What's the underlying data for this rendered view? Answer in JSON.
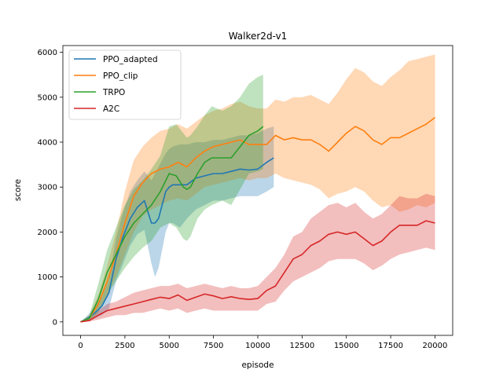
{
  "chart_data": {
    "type": "line",
    "title": "Walker2d-v1",
    "xlabel": "episode",
    "ylabel": "score",
    "xlim": [
      -1000,
      21000
    ],
    "ylim": [
      -300,
      6150
    ],
    "xticks": [
      0,
      2500,
      5000,
      7500,
      10000,
      12500,
      15000,
      17500,
      20000
    ],
    "yticks": [
      0,
      1000,
      2000,
      3000,
      4000,
      5000,
      6000
    ],
    "legend_position": "top-left",
    "grid": false,
    "series": [
      {
        "name": "PPO_adapted",
        "color": "#1f77b4",
        "x": [
          0,
          400,
          800,
          1200,
          1600,
          2000,
          2400,
          2800,
          3200,
          3600,
          4000,
          4200,
          4400,
          4800,
          5000,
          5200,
          5600,
          6000,
          6500,
          7000,
          7500,
          8000,
          8500,
          9000,
          9500,
          10000,
          10500,
          10900
        ],
        "y": [
          0,
          80,
          200,
          350,
          650,
          1400,
          1900,
          2300,
          2550,
          2700,
          2200,
          2200,
          2300,
          2900,
          3000,
          3050,
          3050,
          3050,
          3200,
          3250,
          3300,
          3300,
          3350,
          3400,
          3380,
          3400,
          3550,
          3650
        ],
        "lower": [
          0,
          20,
          80,
          150,
          300,
          900,
          1300,
          1700,
          1950,
          2050,
          1300,
          1000,
          1200,
          2000,
          2200,
          2200,
          2100,
          2300,
          2500,
          2600,
          2700,
          2700,
          2750,
          2800,
          2800,
          2800,
          2900,
          3000
        ],
        "upper": [
          0,
          150,
          350,
          550,
          950,
          1850,
          2450,
          2900,
          3150,
          3350,
          3150,
          3300,
          3450,
          3750,
          3850,
          3900,
          3950,
          3950,
          4000,
          4000,
          4050,
          4050,
          4100,
          4150,
          4150,
          4200,
          4300,
          4350
        ]
      },
      {
        "name": "PPO_clip",
        "color": "#ff7f0e",
        "x": [
          0,
          500,
          1000,
          1500,
          2000,
          2500,
          3000,
          3500,
          4000,
          4500,
          5000,
          5500,
          6000,
          6500,
          7000,
          7500,
          8000,
          8500,
          9000,
          9500,
          10000,
          10500,
          11000,
          11500,
          12000,
          12500,
          13000,
          13500,
          14000,
          14500,
          15000,
          15500,
          16000,
          16500,
          17000,
          17500,
          18000,
          18500,
          19000,
          19500,
          20000
        ],
        "y": [
          0,
          80,
          400,
          900,
          1500,
          2200,
          2800,
          3100,
          3300,
          3400,
          3450,
          3550,
          3450,
          3650,
          3800,
          3900,
          3950,
          4000,
          4050,
          3950,
          3950,
          3950,
          4150,
          4050,
          4100,
          4050,
          4050,
          3950,
          3800,
          4000,
          4200,
          4350,
          4250,
          4050,
          3950,
          4100,
          4100,
          4200,
          4300,
          4400,
          4550
        ],
        "lower": [
          0,
          40,
          250,
          600,
          1000,
          1500,
          2000,
          2350,
          2500,
          2600,
          2700,
          2750,
          2700,
          2850,
          3000,
          3050,
          3100,
          3150,
          3200,
          3150,
          3200,
          3200,
          3300,
          3200,
          3150,
          3100,
          3050,
          2950,
          2750,
          2850,
          2900,
          3000,
          2900,
          2700,
          2550,
          2600,
          2450,
          2500,
          2600,
          2550,
          2650
        ],
        "upper": [
          0,
          150,
          600,
          1250,
          2000,
          2900,
          3600,
          3900,
          4100,
          4250,
          4300,
          4400,
          4300,
          4450,
          4600,
          4700,
          4750,
          4850,
          4900,
          4800,
          4750,
          4750,
          4950,
          4900,
          5000,
          5000,
          5050,
          4950,
          4850,
          5100,
          5400,
          5650,
          5550,
          5350,
          5250,
          5450,
          5600,
          5800,
          5850,
          5900,
          5950
        ]
      },
      {
        "name": "TRPO",
        "color": "#2ca02c",
        "x": [
          0,
          500,
          1000,
          1500,
          2000,
          2500,
          3000,
          3500,
          4000,
          4500,
          5000,
          5400,
          5800,
          6000,
          6200,
          6600,
          7000,
          7400,
          8000,
          8500,
          9000,
          9500,
          10000,
          10300
        ],
        "y": [
          0,
          80,
          500,
          1100,
          1500,
          1900,
          2200,
          2400,
          2600,
          2900,
          3300,
          3250,
          3000,
          2950,
          3000,
          3300,
          3550,
          3650,
          3650,
          3650,
          3900,
          4150,
          4250,
          4350
        ],
        "lower": [
          0,
          30,
          200,
          600,
          900,
          1200,
          1450,
          1650,
          1800,
          2100,
          2200,
          2100,
          1850,
          1800,
          1900,
          2300,
          2500,
          2600,
          2700,
          2600,
          2950,
          3300,
          3350,
          3400
        ],
        "upper": [
          0,
          150,
          850,
          1600,
          2100,
          2600,
          2950,
          3150,
          3400,
          3700,
          4350,
          4400,
          4200,
          4100,
          4150,
          4350,
          4600,
          4800,
          4700,
          4800,
          5000,
          5300,
          5450,
          5500
        ]
      },
      {
        "name": "A2C",
        "color": "#d62728",
        "x": [
          0,
          500,
          1000,
          1500,
          2000,
          2500,
          3000,
          3500,
          4000,
          4500,
          5000,
          5500,
          6000,
          6500,
          7000,
          7500,
          8000,
          8500,
          9000,
          9500,
          10000,
          10500,
          11000,
          11500,
          12000,
          12500,
          13000,
          13500,
          14000,
          14500,
          15000,
          15500,
          16000,
          16500,
          17000,
          17500,
          18000,
          18500,
          19000,
          19500,
          20000
        ],
        "y": [
          0,
          30,
          150,
          250,
          300,
          350,
          400,
          450,
          500,
          550,
          520,
          600,
          480,
          550,
          620,
          580,
          520,
          560,
          520,
          500,
          520,
          700,
          800,
          1100,
          1400,
          1500,
          1700,
          1800,
          1950,
          2000,
          1950,
          2000,
          1850,
          1700,
          1800,
          2000,
          2150,
          2150,
          2150,
          2250,
          2200
        ],
        "lower": [
          0,
          10,
          50,
          100,
          150,
          150,
          200,
          200,
          250,
          300,
          250,
          300,
          200,
          250,
          300,
          250,
          250,
          250,
          250,
          250,
          250,
          400,
          450,
          700,
          900,
          1000,
          1100,
          1200,
          1350,
          1400,
          1400,
          1400,
          1300,
          1150,
          1250,
          1400,
          1500,
          1550,
          1600,
          1650,
          1600
        ],
        "upper": [
          0,
          60,
          250,
          400,
          450,
          550,
          650,
          700,
          750,
          800,
          800,
          850,
          750,
          800,
          850,
          800,
          750,
          800,
          750,
          750,
          800,
          1000,
          1200,
          1500,
          1900,
          2000,
          2300,
          2450,
          2600,
          2650,
          2550,
          2650,
          2450,
          2300,
          2400,
          2600,
          2800,
          2750,
          2750,
          2850,
          2800
        ]
      }
    ]
  }
}
